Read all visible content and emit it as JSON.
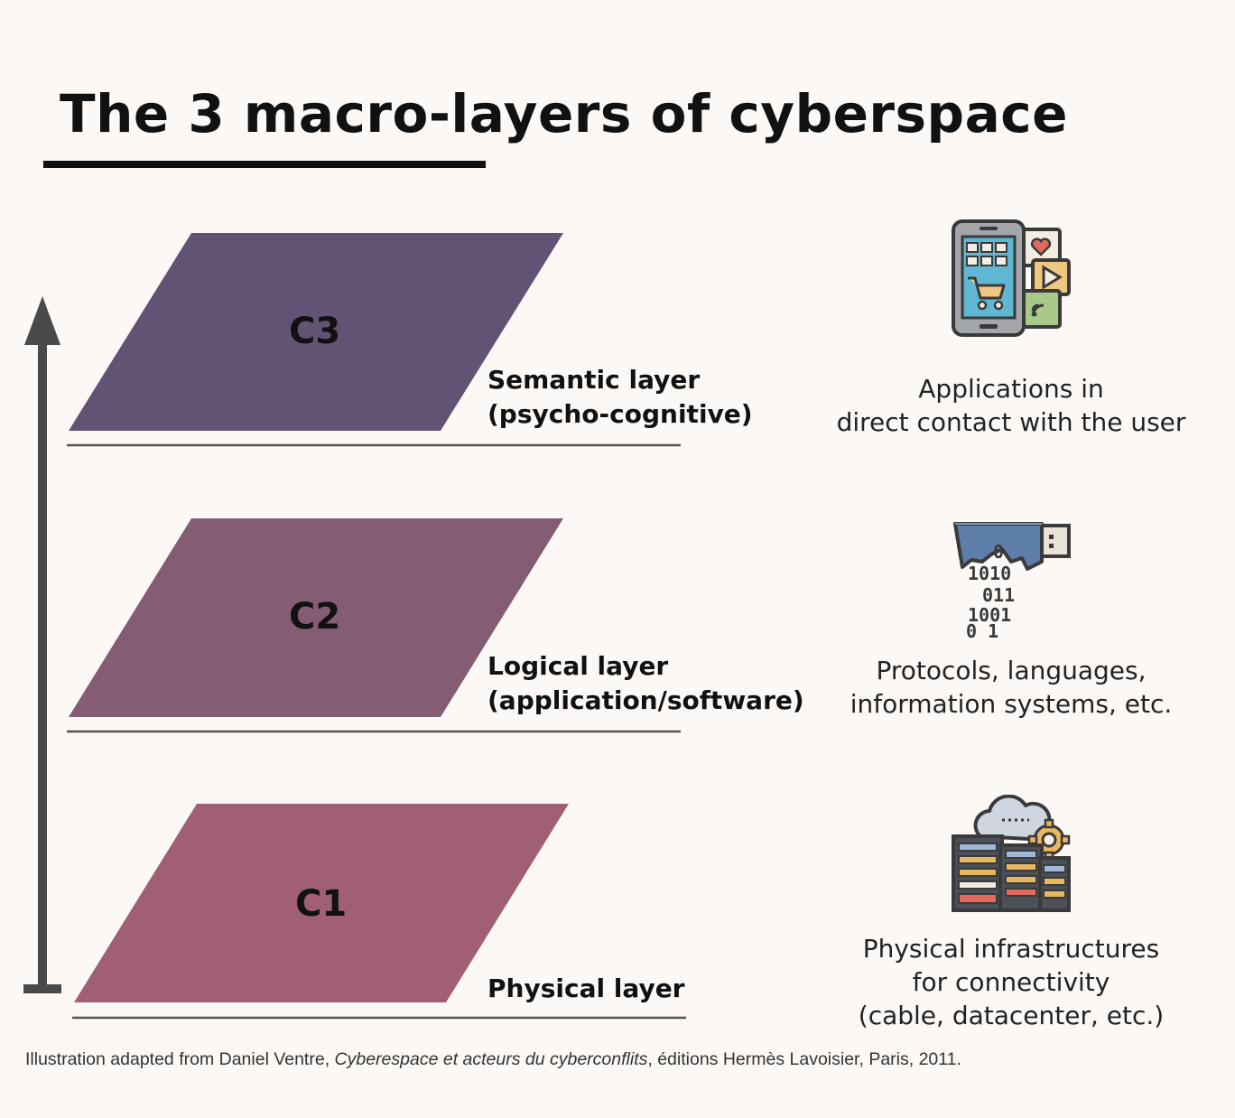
{
  "title": "The 3 macro-layers of cyberspace",
  "colors": {
    "c3": "#625274",
    "c2": "#845c73",
    "c1": "#a05f72",
    "arrow": "#4a4a4a",
    "background": "#fcf8f5"
  },
  "layers": [
    {
      "code": "C3",
      "label_line1": "Semantic layer",
      "label_line2": "(psycho-cognitive)",
      "desc_line1": "Applications in",
      "desc_line2": "direct contact with the user",
      "icon": "smartphone-apps-icon"
    },
    {
      "code": "C2",
      "label_line1": "Logical layer",
      "label_line2": "(application/software)",
      "desc_line1": "Protocols, languages,",
      "desc_line2": "information systems, etc.",
      "icon": "usb-binary-data-icon"
    },
    {
      "code": "C1",
      "label_line1": "Physical layer",
      "desc_line1": "Physical infrastructures",
      "desc_line2": "for connectivity",
      "desc_line3": "(cable, datacenter, etc.)",
      "icon": "datacenter-cloud-icon"
    }
  ],
  "caption": {
    "prefix": "Illustration adapted from Daniel Ventre, ",
    "book": "Cyberespace et acteurs du cyberconflits",
    "suffix": ", éditions Hermès Lavoisier, Paris, 2011."
  }
}
